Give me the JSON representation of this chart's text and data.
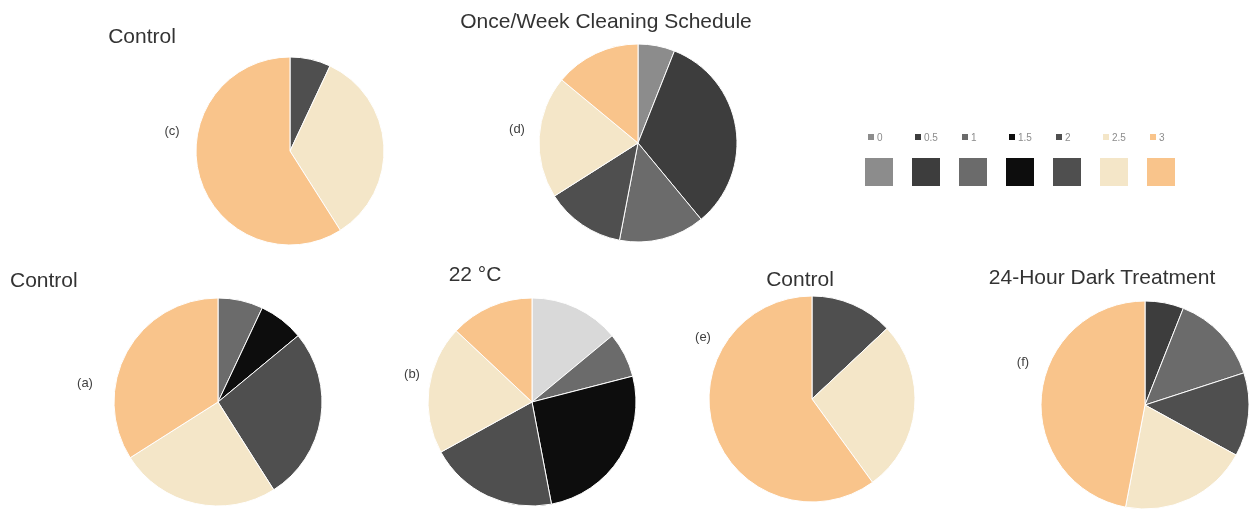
{
  "chart_data": [
    {
      "type": "pie",
      "title": "Control",
      "annotations": [
        "(c)"
      ],
      "categories": [
        null,
        null,
        null
      ],
      "values": [
        7,
        34,
        59
      ],
      "colors": [
        "#4f4f4f",
        "#f4e6c8",
        "#f9c48b"
      ]
    },
    {
      "type": "pie",
      "title": "Once/Week Cleaning Schedule",
      "annotations": [
        "(d)"
      ],
      "categories": [
        "0",
        "0.5",
        "1",
        "1.5",
        "2",
        "2.5",
        "3"
      ],
      "values": [
        6,
        33,
        14,
        null,
        13,
        20,
        14
      ],
      "colors": [
        "#8c8c8c",
        "#3d3d3d",
        "#6b6b6b",
        "#0d0d0d",
        "#4f4f4f",
        "#f4e6c8",
        "#f9c48b"
      ],
      "legend": "right"
    },
    {
      "type": "pie",
      "title": "Control",
      "annotations": [
        "(a)"
      ],
      "categories": [
        null,
        null,
        null,
        null,
        null
      ],
      "values": [
        7,
        7,
        27,
        25,
        34
      ],
      "colors": [
        "#6b6b6b",
        "#0d0d0d",
        "#4f4f4f",
        "#f4e6c8",
        "#f9c48b"
      ]
    },
    {
      "type": "pie",
      "title": "22 °C",
      "annotations": [
        "(b)"
      ],
      "categories": [
        null,
        null,
        null,
        null,
        null,
        null
      ],
      "values": [
        14,
        7,
        26,
        20,
        20,
        13
      ],
      "colors": [
        "#d9d9d9",
        "#6b6b6b",
        "#0d0d0d",
        "#4f4f4f",
        "#f4e6c8",
        "#f9c48b"
      ]
    },
    {
      "type": "pie",
      "title": "Control",
      "annotations": [
        "(e)"
      ],
      "categories": [
        null,
        null,
        null
      ],
      "values": [
        13,
        27,
        60
      ],
      "colors": [
        "#4f4f4f",
        "#f4e6c8",
        "#f9c48b"
      ]
    },
    {
      "type": "pie",
      "title": "24-Hour Dark Treatment",
      "annotations": [
        "(f)"
      ],
      "categories": [
        null,
        null,
        null,
        null,
        null
      ],
      "values": [
        6,
        14,
        13,
        20,
        47
      ],
      "colors": [
        "#3d3d3d",
        "#6b6b6b",
        "#4f4f4f",
        "#f4e6c8",
        "#f9c48b"
      ]
    }
  ]
}
